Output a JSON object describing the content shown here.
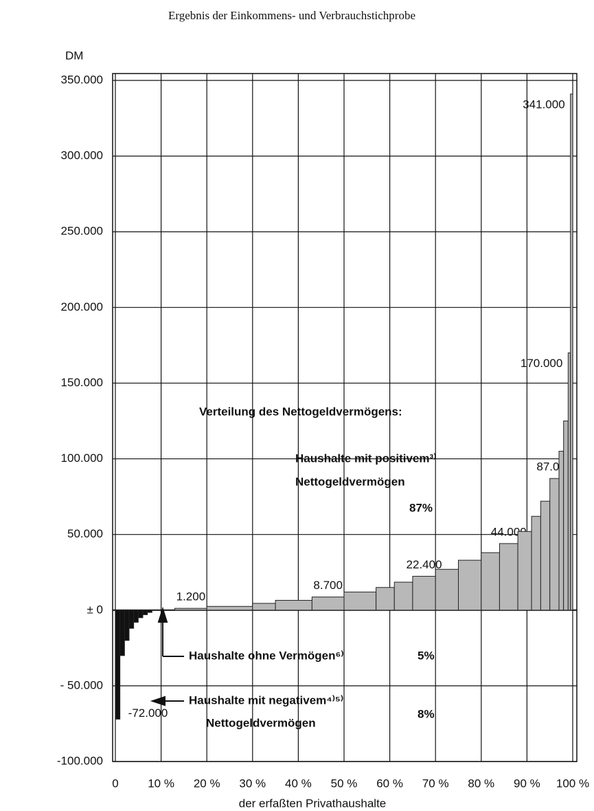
{
  "chart_data": {
    "type": "histogram",
    "title": "Ergebnis der Einkommens- und Verbrauchstichprobe",
    "y_label": "DM",
    "x_label": "der erfaßten Privathaushalte",
    "bins": [
      0,
      1,
      2,
      3,
      4,
      5,
      6,
      7,
      8,
      13,
      20,
      30,
      35,
      43,
      50,
      57,
      61,
      65,
      70,
      75,
      80,
      84,
      88,
      91,
      93,
      95,
      97,
      98,
      99,
      99.5,
      100
    ],
    "values": [
      -72000,
      -30000,
      -20000,
      -12000,
      -8000,
      -5000,
      -3000,
      -1500,
      0,
      1200,
      2500,
      4500,
      6500,
      8700,
      12000,
      15000,
      18500,
      22400,
      27000,
      33000,
      38000,
      44000,
      52000,
      62000,
      72000,
      87000,
      105000,
      125000,
      170000,
      341000
    ],
    "value_labels": [
      "-72.000",
      null,
      null,
      null,
      null,
      null,
      null,
      null,
      null,
      "1.200",
      null,
      null,
      null,
      "8.700",
      null,
      null,
      null,
      "22.400",
      null,
      null,
      null,
      "44.000",
      null,
      null,
      null,
      "87.000",
      null,
      null,
      "170.000",
      "341.000"
    ],
    "negative_color": "#111111",
    "positive_color": "#b8b8b8",
    "xlim": [
      0,
      100
    ],
    "xticks": [
      0,
      {
        "value": 10,
        "label": "10 %"
      },
      {
        "value": 20,
        "label": "20 %"
      },
      {
        "value": 30,
        "label": "30 %"
      },
      {
        "value": 40,
        "label": "40 %"
      },
      {
        "value": 50,
        "label": "50 %"
      },
      {
        "value": 60,
        "label": "60 %"
      },
      {
        "value": 70,
        "label": "70 %"
      },
      {
        "value": 80,
        "label": "80 %"
      },
      {
        "value": 90,
        "label": "90 %"
      },
      {
        "value": 100,
        "label": "100 %"
      }
    ],
    "ylim": [
      -100000,
      350000
    ],
    "yticks": [
      {
        "value": -100000,
        "label": "-100.000"
      },
      {
        "value": -50000,
        "label": "- 50.000"
      },
      {
        "value": 0,
        "label": "± 0"
      },
      {
        "value": 50000,
        "label": "50.000"
      },
      {
        "value": 100000,
        "label": "100.000"
      },
      {
        "value": 150000,
        "label": "150.000"
      },
      {
        "value": 200000,
        "label": "200.000"
      },
      {
        "value": 250000,
        "label": "250.000"
      },
      {
        "value": 300000,
        "label": "300.000"
      },
      {
        "value": 350000,
        "label": "350.000"
      }
    ],
    "grid": true,
    "annotations": [
      "Verteilung des Nettogeldvermögens:",
      "Haushalte mit positivem³⁾",
      "Nettogeldvermögen",
      "87%",
      "Haushalte ohne Vermögen⁶⁾",
      "5%",
      "Haushalte mit negativem⁴⁾⁵⁾",
      "Nettogeldvermögen",
      "8%"
    ]
  }
}
